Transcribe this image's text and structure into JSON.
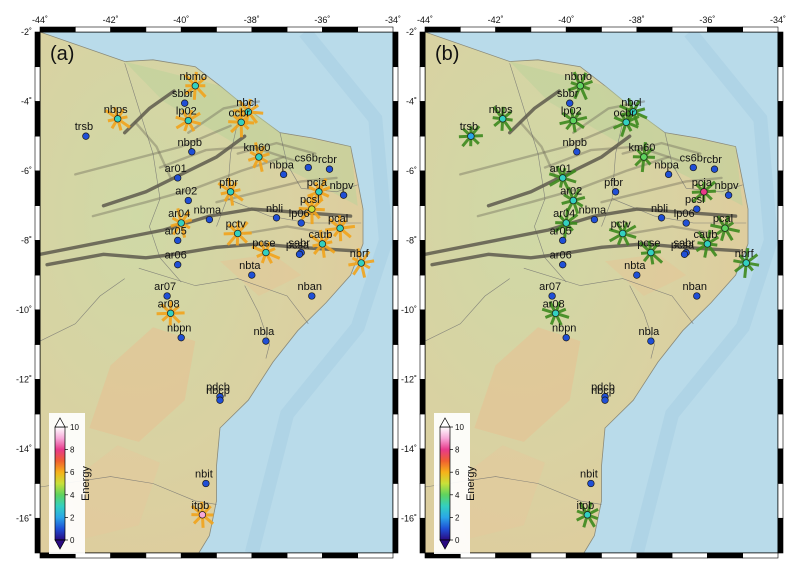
{
  "axes": {
    "lon_range": [
      -44,
      -34
    ],
    "lat_range": [
      -17,
      -2
    ],
    "lon_ticks": [
      "-44˚",
      "-42˚",
      "-40˚",
      "-38˚",
      "-36˚",
      "-34˚"
    ],
    "lat_ticks": [
      "-2˚",
      "-4˚",
      "-6˚",
      "-8˚",
      "-10˚",
      "-12˚",
      "-14˚",
      "-16˚"
    ]
  },
  "panels": [
    {
      "label": "(a)",
      "marker_style": "orange-bars"
    },
    {
      "label": "(b)",
      "marker_style": "green-bars"
    }
  ],
  "colorbar": {
    "label": "Energy",
    "ticks": [
      "10",
      "8",
      "6",
      "4",
      "2",
      "0"
    ],
    "min": 0,
    "max": 10,
    "stops": [
      "#2a0a80",
      "#1f4fd6",
      "#2aa6e8",
      "#33d0c0",
      "#5fd35f",
      "#c8e03a",
      "#f6b21a",
      "#f06030",
      "#e83a8a",
      "#f7a8d8",
      "#ffffff"
    ]
  },
  "colors": {
    "ocean": "#b9dbea",
    "land": "#d8d3a6",
    "land_green": "#bcd29a",
    "fault": "#5e5a4e",
    "bar_a": "#f2a41c",
    "bar_b": "#3d8a1e",
    "station_outline": "#1a1a1a"
  },
  "stations": [
    {
      "name": "nbmo",
      "lon": -39.6,
      "lat": -3.55,
      "energy_a": 3.0,
      "energy_b": 4.0
    },
    {
      "name": "sbbr",
      "lon": -39.9,
      "lat": -4.05,
      "energy_a": 0.8,
      "energy_b": 0.8
    },
    {
      "name": "nbps",
      "lon": -41.8,
      "lat": -4.5,
      "energy_a": 2.5,
      "energy_b": 2.5
    },
    {
      "name": "trsb",
      "lon": -42.7,
      "lat": -5.0,
      "energy_a": 0.8,
      "energy_b": 2.0
    },
    {
      "name": "lp02",
      "lon": -39.8,
      "lat": -4.55,
      "energy_a": 2.5,
      "energy_b": 3.5
    },
    {
      "name": "nbcl",
      "lon": -38.1,
      "lat": -4.3,
      "energy_a": 2.5,
      "energy_b": 2.5
    },
    {
      "name": "ocbr",
      "lon": -38.3,
      "lat": -4.6,
      "energy_a": 2.5,
      "energy_b": 2.5
    },
    {
      "name": "nbpb",
      "lon": -39.7,
      "lat": -5.45,
      "energy_a": 0.8,
      "energy_b": 0.8
    },
    {
      "name": "km60",
      "lon": -37.8,
      "lat": -5.6,
      "energy_a": 2.5,
      "energy_b": 3.5
    },
    {
      "name": "cs6b",
      "lon": -36.4,
      "lat": -5.9,
      "energy_a": 0.8,
      "energy_b": 0.8
    },
    {
      "name": "nbpa",
      "lon": -37.1,
      "lat": -6.1,
      "energy_a": 0.8,
      "energy_b": 0.8
    },
    {
      "name": "rcbr",
      "lon": -35.8,
      "lat": -5.95,
      "energy_a": 0.8,
      "energy_b": 0.8
    },
    {
      "name": "ar01",
      "lon": -40.1,
      "lat": -6.2,
      "energy_a": 0.8,
      "energy_b": 2.5
    },
    {
      "name": "pfbr",
      "lon": -38.6,
      "lat": -6.6,
      "energy_a": 2.5,
      "energy_b": 0.8
    },
    {
      "name": "pcja",
      "lon": -36.1,
      "lat": -6.6,
      "energy_a": 2.5,
      "energy_b": 7.5
    },
    {
      "name": "nbpv",
      "lon": -35.4,
      "lat": -6.7,
      "energy_a": 0.8,
      "energy_b": 0.8
    },
    {
      "name": "ar02",
      "lon": -39.8,
      "lat": -6.85,
      "energy_a": 0.8,
      "energy_b": 2.5
    },
    {
      "name": "pcsl",
      "lon": -36.3,
      "lat": -7.1,
      "energy_a": 4.5,
      "energy_b": 0.8
    },
    {
      "name": "pcal",
      "lon": -35.5,
      "lat": -7.65,
      "energy_a": 2.5,
      "energy_b": 4.0
    },
    {
      "name": "ar04",
      "lon": -40.0,
      "lat": -7.5,
      "energy_a": 2.5,
      "energy_b": 2.5
    },
    {
      "name": "nbma",
      "lon": -39.2,
      "lat": -7.4,
      "energy_a": 0.8,
      "energy_b": 0.8
    },
    {
      "name": "nbli",
      "lon": -37.3,
      "lat": -7.35,
      "energy_a": 0.8,
      "energy_b": 0.8
    },
    {
      "name": "lp06",
      "lon": -36.6,
      "lat": -7.5,
      "energy_a": 0.8,
      "energy_b": 0.8
    },
    {
      "name": "pctv",
      "lon": -38.4,
      "lat": -7.8,
      "energy_a": 2.5,
      "energy_b": 2.5
    },
    {
      "name": "caub",
      "lon": -36.0,
      "lat": -8.1,
      "energy_a": 2.5,
      "energy_b": 2.5
    },
    {
      "name": "ar05",
      "lon": -40.1,
      "lat": -8.0,
      "energy_a": 0.8,
      "energy_b": 0.8
    },
    {
      "name": "pcse",
      "lon": -37.6,
      "lat": -8.35,
      "energy_a": 2.5,
      "energy_b": 2.5
    },
    {
      "name": "sabr",
      "lon": -36.6,
      "lat": -8.35,
      "energy_a": 0.8,
      "energy_b": 0.8
    },
    {
      "name": "pcsa",
      "lon": -36.65,
      "lat": -8.4,
      "energy_a": 0.8,
      "energy_b": 0.8
    },
    {
      "name": "ar06",
      "lon": -40.1,
      "lat": -8.7,
      "energy_a": 0.8,
      "energy_b": 0.8
    },
    {
      "name": "nbrf",
      "lon": -34.9,
      "lat": -8.65,
      "energy_a": 2.5,
      "energy_b": 2.5
    },
    {
      "name": "nbta",
      "lon": -38.0,
      "lat": -9.0,
      "energy_a": 0.8,
      "energy_b": 0.8
    },
    {
      "name": "ar07",
      "lon": -40.4,
      "lat": -9.6,
      "energy_a": 0.8,
      "energy_b": 0.8
    },
    {
      "name": "nban",
      "lon": -36.3,
      "lat": -9.6,
      "energy_a": 1.0,
      "energy_b": 1.0
    },
    {
      "name": "ar08",
      "lon": -40.3,
      "lat": -10.1,
      "energy_a": 2.5,
      "energy_b": 2.5
    },
    {
      "name": "nbla",
      "lon": -37.6,
      "lat": -10.9,
      "energy_a": 0.8,
      "energy_b": 0.8
    },
    {
      "name": "nbpn",
      "lon": -40.0,
      "lat": -10.8,
      "energy_a": 0.8,
      "energy_b": 0.8
    },
    {
      "name": "pdcb",
      "lon": -38.9,
      "lat": -12.5,
      "energy_a": 0.8,
      "energy_b": 0.8
    },
    {
      "name": "nbcp",
      "lon": -38.9,
      "lat": -12.6,
      "energy_a": 0.8,
      "energy_b": 0.8
    },
    {
      "name": "nbit",
      "lon": -39.3,
      "lat": -15.0,
      "energy_a": 0.8,
      "energy_b": 0.8
    },
    {
      "name": "itpb",
      "lon": -39.4,
      "lat": -15.9,
      "energy_a": 8.5,
      "energy_b": 2.5
    }
  ]
}
